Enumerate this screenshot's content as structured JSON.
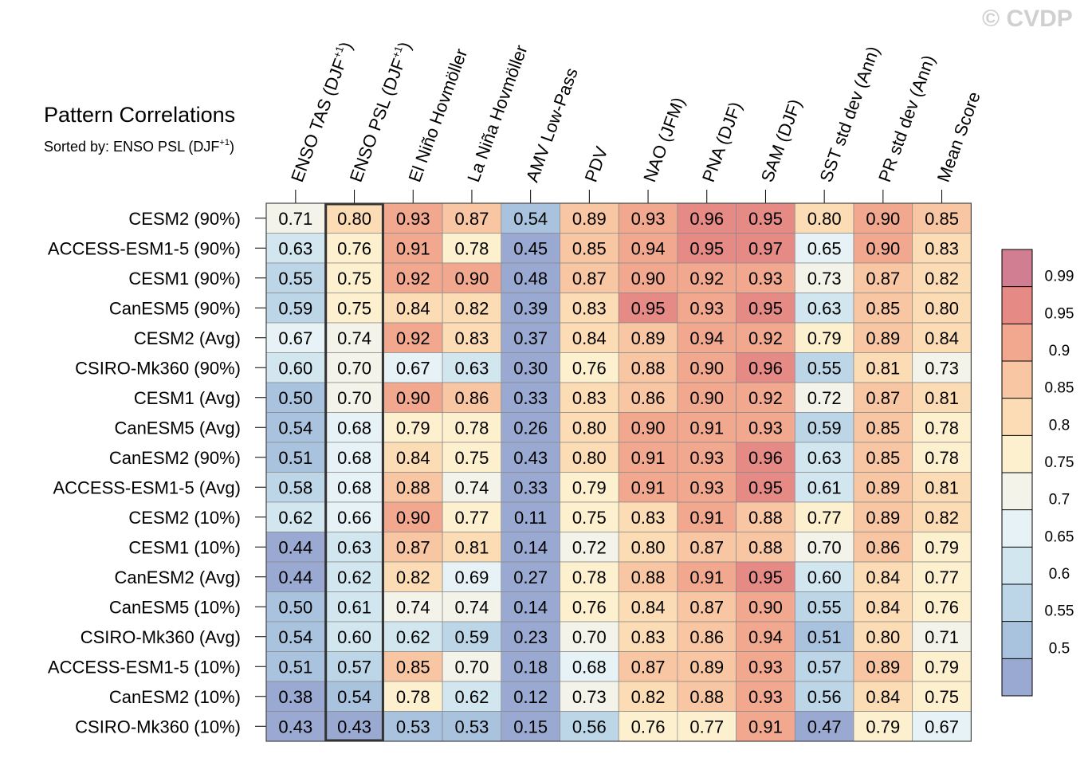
{
  "chart_data": {
    "type": "heatmap",
    "title": "Pattern Correlations",
    "subtitle_prefix": "Sorted by: ENSO PSL (DJF",
    "subtitle_sup": "+1",
    "subtitle_suffix": ")",
    "watermark": "© CVDP",
    "sorted_by_column": 1,
    "columns": [
      {
        "label": "ENSO TAS (DJF",
        "sup": "+1",
        "suffix": ")"
      },
      {
        "label": "ENSO PSL (DJF",
        "sup": "+1",
        "suffix": ")"
      },
      {
        "label": "El Niño Hovmöller"
      },
      {
        "label": "La Niña Hovmöller"
      },
      {
        "label": "AMV Low-Pass"
      },
      {
        "label": "PDV"
      },
      {
        "label": "NAO (JFM)"
      },
      {
        "label": "PNA (DJF)"
      },
      {
        "label": "SAM (DJF)"
      },
      {
        "label": "SST std dev (Ann)"
      },
      {
        "label": "PR std dev (Ann)"
      },
      {
        "label": "Mean Score"
      }
    ],
    "rows": [
      {
        "name": "CESM2 (90%)",
        "values": [
          "0.71",
          "0.80",
          "0.93",
          "0.87",
          "0.54",
          "0.89",
          "0.93",
          "0.96",
          "0.95",
          "0.80",
          "0.90",
          "0.85"
        ]
      },
      {
        "name": "ACCESS-ESM1-5 (90%)",
        "values": [
          "0.63",
          "0.76",
          "0.91",
          "0.78",
          "0.45",
          "0.85",
          "0.94",
          "0.95",
          "0.97",
          "0.65",
          "0.90",
          "0.83"
        ]
      },
      {
        "name": "CESM1 (90%)",
        "values": [
          "0.55",
          "0.75",
          "0.92",
          "0.90",
          "0.48",
          "0.87",
          "0.90",
          "0.92",
          "0.93",
          "0.73",
          "0.87",
          "0.82"
        ]
      },
      {
        "name": "CanESM5 (90%)",
        "values": [
          "0.59",
          "0.75",
          "0.84",
          "0.82",
          "0.39",
          "0.83",
          "0.95",
          "0.93",
          "0.95",
          "0.63",
          "0.85",
          "0.80"
        ]
      },
      {
        "name": "CESM2 (Avg)",
        "values": [
          "0.67",
          "0.74",
          "0.92",
          "0.83",
          "0.37",
          "0.84",
          "0.89",
          "0.94",
          "0.92",
          "0.79",
          "0.89",
          "0.84"
        ]
      },
      {
        "name": "CSIRO-Mk360 (90%)",
        "values": [
          "0.60",
          "0.70",
          "0.67",
          "0.63",
          "0.30",
          "0.76",
          "0.88",
          "0.90",
          "0.96",
          "0.55",
          "0.81",
          "0.73"
        ]
      },
      {
        "name": "CESM1 (Avg)",
        "values": [
          "0.50",
          "0.70",
          "0.90",
          "0.86",
          "0.33",
          "0.83",
          "0.86",
          "0.90",
          "0.92",
          "0.72",
          "0.87",
          "0.81"
        ]
      },
      {
        "name": "CanESM5 (Avg)",
        "values": [
          "0.54",
          "0.68",
          "0.79",
          "0.78",
          "0.26",
          "0.80",
          "0.90",
          "0.91",
          "0.93",
          "0.59",
          "0.85",
          "0.78"
        ]
      },
      {
        "name": "CanESM2 (90%)",
        "values": [
          "0.51",
          "0.68",
          "0.84",
          "0.75",
          "0.43",
          "0.80",
          "0.91",
          "0.93",
          "0.96",
          "0.63",
          "0.85",
          "0.78"
        ]
      },
      {
        "name": "ACCESS-ESM1-5 (Avg)",
        "values": [
          "0.58",
          "0.68",
          "0.88",
          "0.74",
          "0.33",
          "0.79",
          "0.91",
          "0.93",
          "0.95",
          "0.61",
          "0.89",
          "0.81"
        ]
      },
      {
        "name": "CESM2 (10%)",
        "values": [
          "0.62",
          "0.66",
          "0.90",
          "0.77",
          "0.11",
          "0.75",
          "0.83",
          "0.91",
          "0.88",
          "0.77",
          "0.89",
          "0.82"
        ]
      },
      {
        "name": "CESM1 (10%)",
        "values": [
          "0.44",
          "0.63",
          "0.87",
          "0.81",
          "0.14",
          "0.72",
          "0.80",
          "0.87",
          "0.88",
          "0.70",
          "0.86",
          "0.79"
        ]
      },
      {
        "name": "CanESM2 (Avg)",
        "values": [
          "0.44",
          "0.62",
          "0.82",
          "0.69",
          "0.27",
          "0.78",
          "0.88",
          "0.91",
          "0.95",
          "0.60",
          "0.84",
          "0.77"
        ]
      },
      {
        "name": "CanESM5 (10%)",
        "values": [
          "0.50",
          "0.61",
          "0.74",
          "0.74",
          "0.14",
          "0.76",
          "0.84",
          "0.87",
          "0.90",
          "0.55",
          "0.84",
          "0.76"
        ]
      },
      {
        "name": "CSIRO-Mk360 (Avg)",
        "values": [
          "0.54",
          "0.60",
          "0.62",
          "0.59",
          "0.23",
          "0.70",
          "0.83",
          "0.86",
          "0.94",
          "0.51",
          "0.80",
          "0.71"
        ]
      },
      {
        "name": "ACCESS-ESM1-5 (10%)",
        "values": [
          "0.51",
          "0.57",
          "0.85",
          "0.70",
          "0.18",
          "0.68",
          "0.87",
          "0.89",
          "0.93",
          "0.57",
          "0.89",
          "0.79"
        ]
      },
      {
        "name": "CanESM2 (10%)",
        "values": [
          "0.38",
          "0.54",
          "0.78",
          "0.62",
          "0.12",
          "0.73",
          "0.82",
          "0.88",
          "0.93",
          "0.56",
          "0.84",
          "0.75"
        ]
      },
      {
        "name": "CSIRO-Mk360 (10%)",
        "values": [
          "0.43",
          "0.43",
          "0.53",
          "0.53",
          "0.15",
          "0.56",
          "0.76",
          "0.77",
          "0.91",
          "0.47",
          "0.79",
          "0.67"
        ]
      }
    ],
    "colorbar": {
      "levels": [
        0.5,
        0.55,
        0.6,
        0.65,
        0.7,
        0.75,
        0.8,
        0.85,
        0.9,
        0.95,
        0.99
      ],
      "tick_labels": [
        "0.5",
        "0.55",
        "0.6",
        "0.65",
        "0.7",
        "0.75",
        "0.8",
        "0.85",
        "0.9",
        "0.95",
        "0.99"
      ],
      "colors": [
        "#9aa9d1",
        "#a9c3df",
        "#bcd6e8",
        "#d2e6f0",
        "#e6f2f5",
        "#f4f3e9",
        "#fdf0cf",
        "#fcdcb4",
        "#f9c6a3",
        "#f1a88f",
        "#e68a86",
        "#d17d92"
      ]
    }
  }
}
